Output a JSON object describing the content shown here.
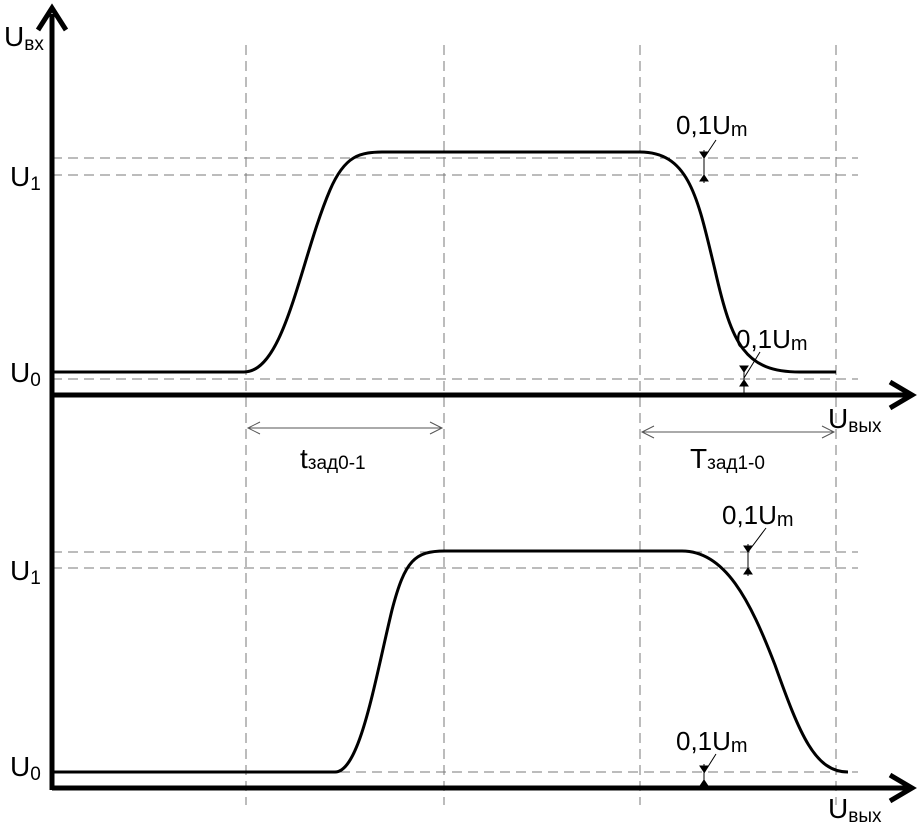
{
  "diagram": {
    "top_axis": {
      "y_label": "U",
      "y_label_sub": "вх",
      "x_label": "U",
      "x_label_sub": "вых"
    },
    "bottom_axis": {
      "x_label": "U",
      "x_label_sub": "вых"
    },
    "levels": {
      "u1_main": "U",
      "u1_sub": "1",
      "u0_main": "U",
      "u0_sub": "0"
    },
    "tolerance": {
      "main": "0,1U",
      "sub": "m"
    },
    "delays": {
      "t01_main": "t",
      "t01_sub": "зад0-1",
      "t10_main": "T",
      "t10_sub": "зад1-0"
    },
    "colors": {
      "curve": "#000000",
      "axis": "#000000",
      "guide": "#7a7a7a"
    }
  }
}
